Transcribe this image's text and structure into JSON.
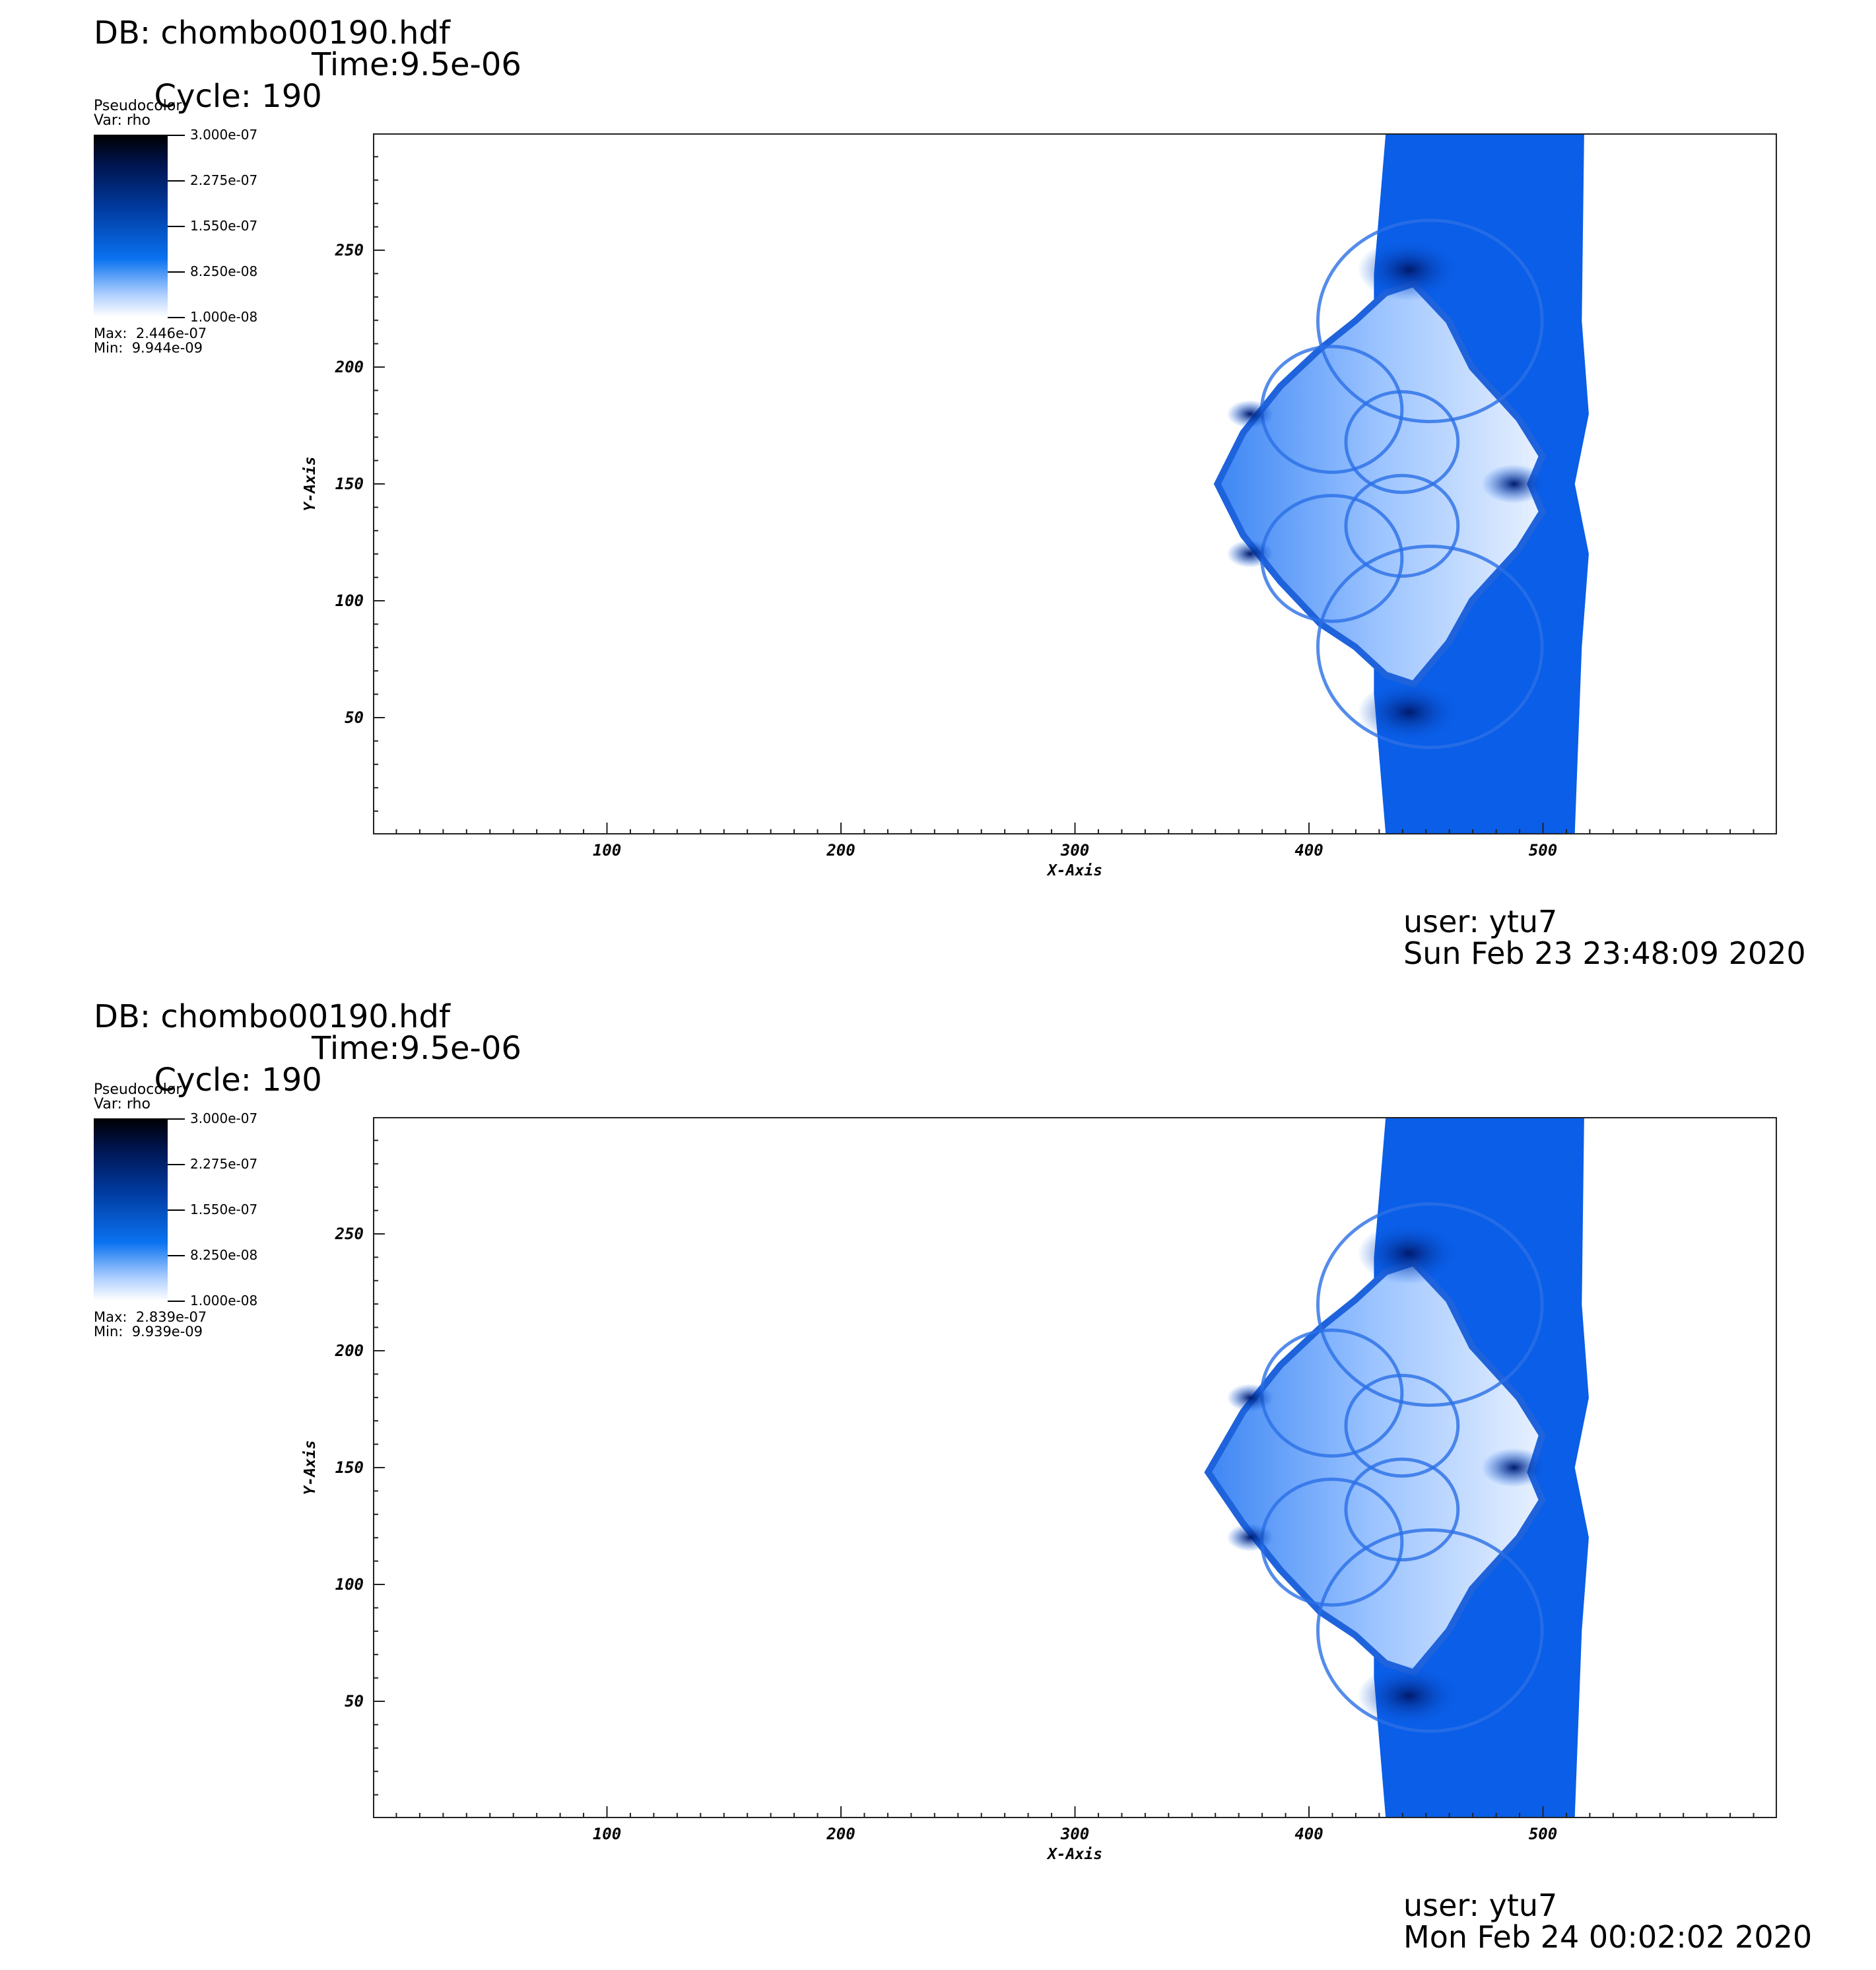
{
  "panels": [
    {
      "db": "DB: chombo00190.hdf",
      "cycle": "Cycle: 190",
      "time": "Time:9.5e-06",
      "legend": {
        "title": "Pseudocolor",
        "var": "Var: rho",
        "ticks": [
          "3.000e-07",
          "2.275e-07",
          "1.550e-07",
          "8.250e-08",
          "1.000e-08"
        ],
        "max": "Max:  2.446e-07",
        "min": "Min:  9.944e-09"
      },
      "user": "user: ytu7",
      "date": "Sun Feb 23 23:48:09 2020"
    },
    {
      "db": "DB: chombo00190.hdf",
      "cycle": "Cycle: 190",
      "time": "Time:9.5e-06",
      "legend": {
        "title": "Pseudocolor",
        "var": "Var: rho",
        "ticks": [
          "3.000e-07",
          "2.275e-07",
          "1.550e-07",
          "8.250e-08",
          "1.000e-08"
        ],
        "max": "Max:  2.839e-07",
        "min": "Min:  9.939e-09"
      },
      "user": "user: ytu7",
      "date": "Mon Feb 24 00:02:02 2020"
    }
  ],
  "colors": {
    "fluid": "#0a5ee8",
    "fluid_light": "#9cc4ff",
    "fluid_dark": "#001a6e",
    "background": "#ffffff"
  },
  "chart_data": [
    {
      "type": "heatmap",
      "xlabel": "X-Axis",
      "ylabel": "Y-Axis",
      "xlim": [
        0,
        600
      ],
      "ylim": [
        0,
        300
      ],
      "xticks": [
        100,
        200,
        300,
        400,
        500
      ],
      "yticks": [
        50,
        100,
        150,
        200,
        250
      ],
      "colorbar_range": [
        1e-08,
        3e-07
      ],
      "colorbar_ticks": [
        3e-07,
        2.275e-07,
        1.55e-07,
        8.25e-08,
        1e-08
      ]
    },
    {
      "type": "heatmap",
      "xlabel": "X-Axis",
      "ylabel": "Y-Axis",
      "xlim": [
        0,
        600
      ],
      "ylim": [
        0,
        300
      ],
      "xticks": [
        100,
        200,
        300,
        400,
        500
      ],
      "yticks": [
        50,
        100,
        150,
        200,
        250
      ],
      "colorbar_range": [
        1e-08,
        3e-07
      ],
      "colorbar_ticks": [
        3e-07,
        2.275e-07,
        1.55e-07,
        8.25e-08,
        1e-08
      ]
    }
  ]
}
